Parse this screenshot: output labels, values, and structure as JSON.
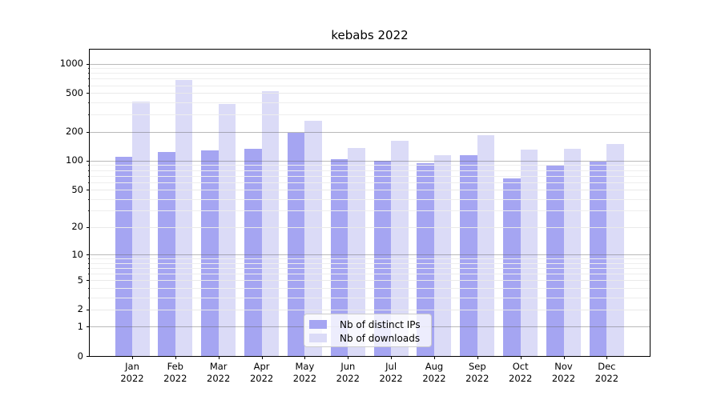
{
  "chart_data": {
    "type": "bar",
    "title": "kebabs 2022",
    "categories": [
      "Jan",
      "Feb",
      "Mar",
      "Apr",
      "May",
      "Jun",
      "Jul",
      "Aug",
      "Sep",
      "Oct",
      "Nov",
      "Dec"
    ],
    "category_year": "2022",
    "series": [
      {
        "name": "Nb of distinct IPs",
        "color": "#a5a5f2",
        "values": [
          110,
          122,
          128,
          133,
          193,
          103,
          100,
          94,
          115,
          65,
          91,
          98
        ]
      },
      {
        "name": "Nb of downloads",
        "color": "#dbdbf7",
        "values": [
          405,
          680,
          388,
          520,
          258,
          135,
          161,
          115,
          182,
          130,
          134,
          149
        ]
      }
    ],
    "xlabel": "",
    "ylabel": "",
    "yscale": "symlog (log1p)",
    "yticks": [
      0,
      1,
      2,
      5,
      10,
      20,
      50,
      100,
      200,
      500,
      1000
    ],
    "ylim": [
      0,
      1400
    ],
    "emphasized_gridlines": [
      1,
      10,
      100,
      200,
      1000
    ],
    "minor_gridlines": [
      3,
      4,
      6,
      7,
      8,
      9,
      30,
      40,
      60,
      70,
      80,
      90,
      300,
      400,
      600,
      700,
      800,
      900
    ],
    "grid": "horizontal major+minor, drawn over bars",
    "legend_position": "lower center",
    "colors": {
      "background": "#ffffff",
      "spine": "#000000",
      "grid_major": "#b4b4b4",
      "grid_minor": "#e9e9e9"
    }
  }
}
